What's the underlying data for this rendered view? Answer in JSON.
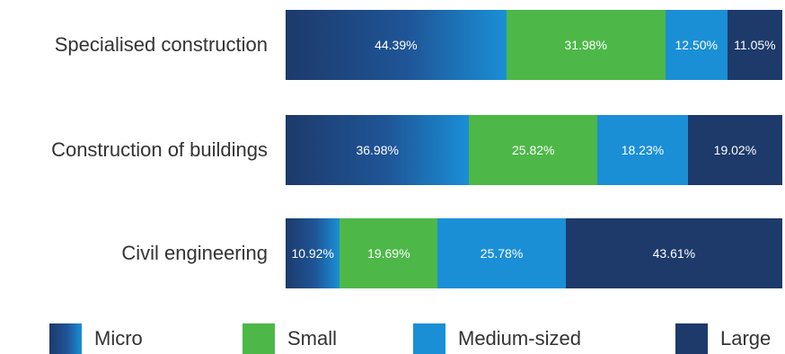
{
  "chart_data": {
    "type": "bar",
    "orientation": "horizontal",
    "stacked": true,
    "categories": [
      "Specialised construction",
      "Construction of buildings",
      "Civil engineering"
    ],
    "series": [
      {
        "name": "Micro",
        "color": "#1f4e8a",
        "values": [
          44.39,
          36.98,
          10.92
        ],
        "labels": [
          "44.39%",
          "36.98%",
          "10.92%"
        ]
      },
      {
        "name": "Small",
        "color": "#4db848",
        "values": [
          31.98,
          25.82,
          19.69
        ],
        "labels": [
          "31.98%",
          "25.82%",
          "19.69%"
        ]
      },
      {
        "name": "Medium-sized",
        "color": "#1a8fd6",
        "values": [
          12.5,
          18.23,
          25.78
        ],
        "labels": [
          "12.50%",
          "18.23%",
          "25.78%"
        ]
      },
      {
        "name": "Large",
        "color": "#1d3a6b",
        "values": [
          11.05,
          19.02,
          43.61
        ],
        "labels": [
          "11.05%",
          "19.02%",
          "43.61%"
        ]
      }
    ],
    "xlim": [
      0,
      100
    ],
    "legend_position": "bottom",
    "grid": false
  }
}
